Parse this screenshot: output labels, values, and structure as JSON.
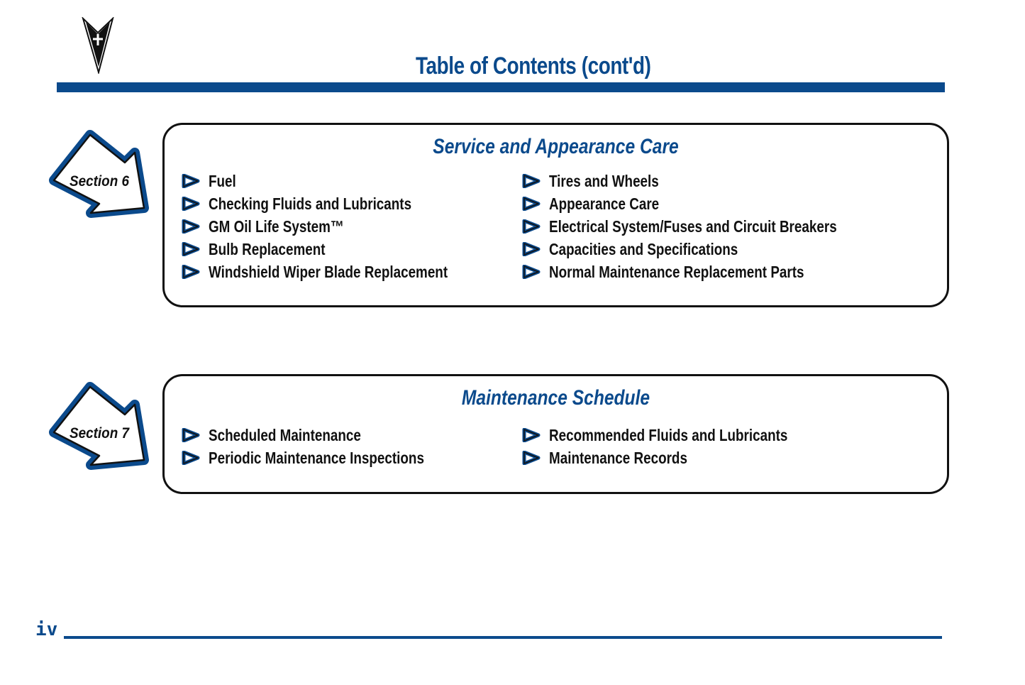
{
  "header": {
    "title": "Table of Contents (cont'd)",
    "logo": "pontiac-arrowhead-logo"
  },
  "sections": [
    {
      "badge": "Section 6",
      "title": "Service and Appearance Care",
      "left": [
        "Fuel",
        "Checking Fluids and Lubricants",
        "GM Oil Life System™",
        "Bulb Replacement",
        "Windshield Wiper Blade Replacement"
      ],
      "right": [
        "Tires and Wheels",
        "Appearance Care",
        "Electrical System/Fuses and Circuit Breakers",
        "Capacities and Specifications",
        "Normal Maintenance Replacement Parts"
      ]
    },
    {
      "badge": "Section 7",
      "title": "Maintenance Schedule",
      "left": [
        "Scheduled Maintenance",
        "Periodic Maintenance Inspections"
      ],
      "right": [
        "Recommended Fluids and Lubricants",
        "Maintenance Records"
      ]
    }
  ],
  "footer": {
    "page_number": "iv"
  },
  "colors": {
    "accent": "#0b4a8c",
    "text": "#111111"
  }
}
